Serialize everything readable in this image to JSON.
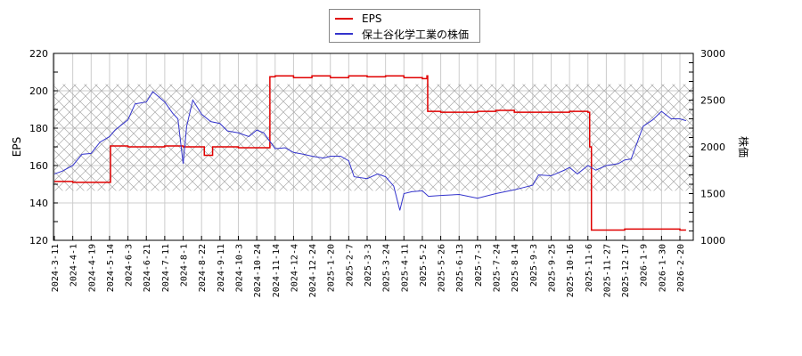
{
  "chart_data": {
    "type": "line",
    "title": "",
    "legend": {
      "position": "top-center",
      "entries": [
        {
          "label": "EPS",
          "color": "#e00000"
        },
        {
          "label": "保土谷化学工業の株価",
          "color": "#3333cc"
        }
      ]
    },
    "xlabel": "",
    "ylabel_left": "EPS",
    "ylabel_right": "株価",
    "ylim_left": [
      120,
      220
    ],
    "ylim_right": [
      1000,
      3000
    ],
    "yticks_left": [
      120,
      140,
      160,
      180,
      200,
      220
    ],
    "yticks_right": [
      1000,
      1500,
      2000,
      2500,
      3000
    ],
    "grid": true,
    "shaded_band": {
      "ylim_left": [
        146.5,
        203.5
      ],
      "pattern": "crosshatch"
    },
    "x_tick_labels": [
      "2024-3-11",
      "2024-4-1",
      "2024-4-19",
      "2024-5-14",
      "2024-6-3",
      "2024-6-21",
      "2024-7-11",
      "2024-8-1",
      "2024-8-22",
      "2024-9-11",
      "2024-10-3",
      "2024-10-24",
      "2024-11-14",
      "2024-12-4",
      "2024-12-24",
      "2025-1-20",
      "2025-2-7",
      "2025-3-3",
      "2025-3-24",
      "2025-4-11",
      "2025-5-2",
      "2025-5-26",
      "2025-6-13",
      "2025-7-3",
      "2025-7-24",
      "2025-8-14",
      "2025-9-3",
      "2025-9-25",
      "2025-10-16",
      "2025-11-6",
      "2025-11-27",
      "2025-12-17",
      "2026-1-9",
      "2026-1-30",
      "2026-2-20"
    ],
    "series": [
      {
        "name": "EPS",
        "axis": "left",
        "color": "#e00000",
        "x": [
          "2024-3-11",
          "2024-4-1",
          "2024-4-19",
          "2024-5-14",
          "2024-5-15",
          "2024-6-3",
          "2024-6-21",
          "2024-7-11",
          "2024-8-1",
          "2024-8-22",
          "2024-8-25",
          "2024-9-3",
          "2024-9-11",
          "2024-10-3",
          "2024-10-24",
          "2024-11-7",
          "2024-11-8",
          "2024-11-14",
          "2024-12-4",
          "2024-12-24",
          "2025-1-20",
          "2025-2-7",
          "2025-3-3",
          "2025-3-24",
          "2025-4-11",
          "2025-5-2",
          "2025-5-8",
          "2025-5-9",
          "2025-5-26",
          "2025-6-13",
          "2025-7-3",
          "2025-7-24",
          "2025-8-14",
          "2025-9-3",
          "2025-9-25",
          "2025-10-16",
          "2025-11-6",
          "2025-11-8",
          "2025-11-10",
          "2025-11-27",
          "2025-12-17",
          "2026-1-9",
          "2026-1-30",
          "2026-2-20",
          "2026-2-27"
        ],
        "values": [
          151.5,
          151,
          151,
          151,
          170.5,
          170,
          170,
          170.5,
          170,
          170,
          165.5,
          170,
          170,
          169.5,
          169.5,
          169.5,
          207.5,
          208,
          207,
          208,
          207,
          208,
          207.5,
          208,
          207,
          206.5,
          208,
          189,
          188.5,
          188.5,
          189,
          189.5,
          188.5,
          188.5,
          188.5,
          189,
          188.5,
          170,
          125.5,
          125.5,
          126,
          126,
          126,
          125.5,
          125.5
        ]
      },
      {
        "name": "保土谷化学工業の株価",
        "axis": "right",
        "color": "#3333cc",
        "x": [
          "2024-3-11",
          "2024-3-20",
          "2024-4-1",
          "2024-4-10",
          "2024-4-19",
          "2024-5-1",
          "2024-5-14",
          "2024-5-20",
          "2024-6-3",
          "2024-6-10",
          "2024-6-21",
          "2024-6-28",
          "2024-7-11",
          "2024-7-20",
          "2024-7-26",
          "2024-8-1",
          "2024-8-5",
          "2024-8-12",
          "2024-8-22",
          "2024-9-1",
          "2024-9-11",
          "2024-9-20",
          "2024-10-3",
          "2024-10-15",
          "2024-10-24",
          "2024-11-1",
          "2024-11-14",
          "2024-11-25",
          "2024-12-4",
          "2024-12-15",
          "2024-12-24",
          "2025-1-10",
          "2025-1-20",
          "2025-1-30",
          "2025-2-7",
          "2025-2-14",
          "2025-3-3",
          "2025-3-15",
          "2025-3-24",
          "2025-4-1",
          "2025-4-7",
          "2025-4-11",
          "2025-4-20",
          "2025-5-2",
          "2025-5-10",
          "2025-5-26",
          "2025-6-13",
          "2025-7-3",
          "2025-7-24",
          "2025-8-14",
          "2025-9-3",
          "2025-9-10",
          "2025-9-25",
          "2025-10-10",
          "2025-10-16",
          "2025-10-25",
          "2025-11-6",
          "2025-11-15",
          "2025-11-27",
          "2025-12-10",
          "2025-12-17",
          "2025-12-25",
          "2026-1-9",
          "2026-1-20",
          "2026-1-30",
          "2026-2-10",
          "2026-2-20",
          "2026-2-27"
        ],
        "values": [
          1710,
          1740,
          1800,
          1920,
          1930,
          2050,
          2110,
          2180,
          2290,
          2460,
          2480,
          2590,
          2480,
          2360,
          2300,
          1820,
          2220,
          2500,
          2350,
          2270,
          2250,
          2170,
          2150,
          2110,
          2180,
          2150,
          1980,
          1990,
          1940,
          1920,
          1900,
          1880,
          1900,
          1900,
          1850,
          1680,
          1660,
          1710,
          1680,
          1580,
          1320,
          1500,
          1520,
          1530,
          1470,
          1480,
          1490,
          1450,
          1500,
          1540,
          1590,
          1700,
          1690,
          1750,
          1780,
          1710,
          1800,
          1750,
          1800,
          1820,
          1860,
          1870,
          2220,
          2290,
          2380,
          2300,
          2300,
          2280
        ]
      }
    ]
  }
}
